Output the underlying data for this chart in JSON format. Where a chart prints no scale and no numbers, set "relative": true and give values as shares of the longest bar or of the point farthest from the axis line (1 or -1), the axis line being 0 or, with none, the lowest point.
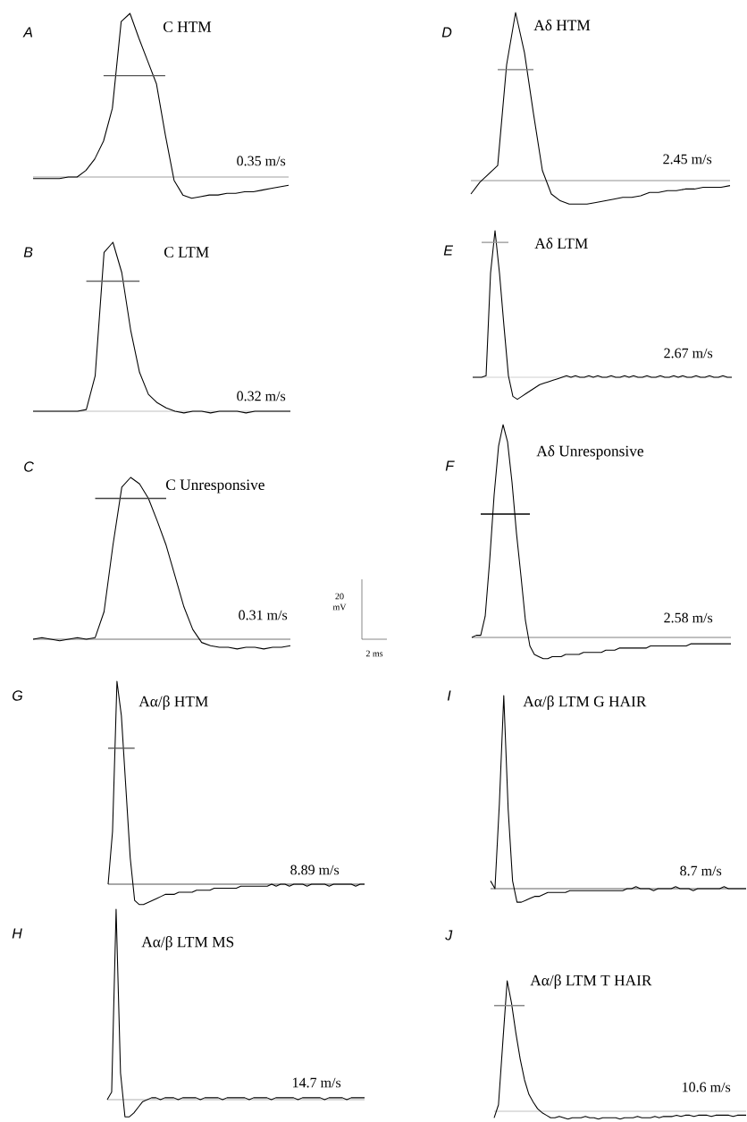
{
  "chart_data": [
    {
      "type": "line",
      "relative": true,
      "title": "C HTM",
      "annotations": [
        "A",
        "0.35 m/s"
      ],
      "categories": [
        null,
        null,
        null,
        null,
        null,
        null,
        null,
        null,
        null,
        null,
        null,
        null,
        null,
        null,
        null,
        null,
        null,
        null,
        null,
        null,
        null,
        null,
        null,
        null,
        null,
        null,
        null,
        null,
        null,
        null
      ],
      "series": [
        {
          "color": "#000000",
          "values": [
            -0.01,
            -0.01,
            -0.01,
            -0.01,
            0,
            0,
            0.04,
            0.11,
            0.22,
            0.42,
            0.95,
            1,
            0.85,
            0.71,
            0.57,
            0.26,
            -0.02,
            -0.11,
            -0.13,
            -0.12,
            -0.11,
            -0.11,
            -0.1,
            -0.1,
            -0.09,
            -0.09,
            -0.08,
            -0.07,
            -0.06,
            -0.05
          ]
        },
        {
          "color": "#555555",
          "values": [
            null,
            null,
            null,
            null,
            null,
            null,
            null,
            null,
            0.62,
            0.62,
            0.62,
            0.62,
            0.62,
            0.62,
            0.62,
            0.62,
            null,
            null,
            null,
            null,
            null,
            null,
            null,
            null,
            null,
            null,
            null,
            null,
            null,
            null
          ]
        }
      ],
      "ref_lines": [
        {
          "axis": "y",
          "value": 0,
          "color": "#999999"
        }
      ]
    },
    {
      "type": "line",
      "relative": true,
      "title": "Aδ HTM",
      "annotations": [
        "D",
        "2.45 m/s"
      ],
      "categories": [
        null,
        null,
        null,
        null,
        null,
        null,
        null,
        null,
        null,
        null,
        null,
        null,
        null,
        null,
        null,
        null,
        null,
        null,
        null,
        null,
        null,
        null,
        null,
        null,
        null,
        null,
        null,
        null,
        null,
        null
      ],
      "series": [
        {
          "color": "#000000",
          "values": [
            -0.08,
            -0.01,
            0.04,
            0.09,
            0.69,
            1,
            0.76,
            0.4,
            0.06,
            -0.08,
            -0.12,
            -0.14,
            -0.14,
            -0.14,
            -0.13,
            -0.12,
            -0.11,
            -0.1,
            -0.1,
            -0.09,
            -0.07,
            -0.07,
            -0.06,
            -0.06,
            -0.05,
            -0.05,
            -0.04,
            -0.04,
            -0.04,
            -0.03
          ]
        },
        {
          "color": "#777777",
          "values": [
            null,
            null,
            null,
            0.66,
            0.66,
            0.66,
            0.66,
            0.66,
            null,
            null,
            null,
            null,
            null,
            null,
            null,
            null,
            null,
            null,
            null,
            null,
            null,
            null,
            null,
            null,
            null,
            null,
            null,
            null,
            null,
            null
          ]
        }
      ],
      "ref_lines": [
        {
          "axis": "y",
          "value": 0,
          "color": "#888888"
        }
      ]
    },
    {
      "type": "line",
      "relative": true,
      "title": "C LTM",
      "annotations": [
        "B",
        "0.32 m/s"
      ],
      "categories": [
        null,
        null,
        null,
        null,
        null,
        null,
        null,
        null,
        null,
        null,
        null,
        null,
        null,
        null,
        null,
        null,
        null,
        null,
        null,
        null,
        null,
        null,
        null,
        null,
        null,
        null,
        null,
        null,
        null,
        null
      ],
      "series": [
        {
          "color": "#000000",
          "values": [
            0,
            0,
            0,
            0,
            0,
            0,
            0.01,
            0.21,
            0.94,
            1,
            0.82,
            0.48,
            0.23,
            0.1,
            0.05,
            0.02,
            0,
            -0.01,
            0,
            0,
            -0.01,
            0,
            0,
            0,
            -0.01,
            0,
            0,
            0,
            0,
            0
          ]
        },
        {
          "color": "#666666",
          "values": [
            null,
            null,
            null,
            null,
            null,
            null,
            0.77,
            0.77,
            0.77,
            0.77,
            0.77,
            0.77,
            0.77,
            null,
            null,
            null,
            null,
            null,
            null,
            null,
            null,
            null,
            null,
            null,
            null,
            null,
            null,
            null,
            null,
            null
          ]
        }
      ],
      "ref_lines": [
        {
          "axis": "y",
          "value": 0,
          "color": "#bbbbbb"
        }
      ]
    },
    {
      "type": "line",
      "relative": true,
      "title": "Aδ LTM",
      "annotations": [
        "E",
        "2.67 m/s"
      ],
      "ref_lines": [
        {
          "axis": "y",
          "value": 0,
          "color": "#cccccc"
        }
      ],
      "categories": [
        null,
        null,
        null,
        null,
        null,
        null,
        null,
        null,
        null,
        null,
        null,
        null,
        null,
        null,
        null,
        null,
        null,
        null,
        null,
        null,
        null,
        null,
        null,
        null,
        null,
        null,
        null,
        null,
        null,
        null,
        null,
        null,
        null,
        null,
        null,
        null,
        null,
        null,
        null,
        null,
        null,
        null,
        null,
        null,
        null,
        null,
        null,
        null,
        null,
        null,
        null,
        null,
        null,
        null,
        null,
        null,
        null,
        null,
        null
      ],
      "series": [
        {
          "color": "#000000",
          "values": [
            0,
            0,
            0,
            0.01,
            0.71,
            1,
            0.71,
            0.35,
            0.01,
            -0.13,
            -0.15,
            -0.13,
            -0.11,
            -0.09,
            -0.07,
            -0.05,
            -0.04,
            -0.03,
            -0.02,
            -0.01,
            0,
            0.01,
            0,
            0.01,
            0,
            0,
            0.01,
            0,
            0.01,
            0,
            0,
            0.01,
            0,
            0,
            0.01,
            0,
            0.01,
            0,
            0,
            0.01,
            0,
            0,
            0.01,
            0,
            0,
            0.01,
            0,
            0.01,
            0,
            0,
            0.01,
            0,
            0,
            0.01,
            0,
            0,
            0.01,
            0,
            0
          ]
        },
        {
          "color": "#999999",
          "values": [
            null,
            null,
            0.92,
            0.92,
            0.92,
            0.92,
            0.92,
            0.92,
            0.92,
            null,
            null,
            null,
            null,
            null,
            null,
            null,
            null,
            null,
            null,
            null,
            null,
            null,
            null,
            null,
            null,
            null,
            null,
            null,
            null,
            null,
            null,
            null,
            null,
            null,
            null,
            null,
            null,
            null,
            null,
            null,
            null,
            null,
            null,
            null,
            null,
            null,
            null,
            null,
            null,
            null,
            null,
            null,
            null,
            null,
            null,
            null,
            null,
            null,
            null
          ]
        }
      ]
    },
    {
      "type": "line",
      "relative": true,
      "title": "C Unresponsive",
      "annotations": [
        "C",
        "0.31 m/s",
        "20 mV",
        "2 ms"
      ],
      "categories": [
        null,
        null,
        null,
        null,
        null,
        null,
        null,
        null,
        null,
        null,
        null,
        null,
        null,
        null,
        null,
        null,
        null,
        null,
        null,
        null,
        null,
        null,
        null,
        null,
        null,
        null,
        null,
        null,
        null,
        null
      ],
      "series": [
        {
          "color": "#000000",
          "values": [
            0,
            0.01,
            0,
            -0.01,
            0,
            0.01,
            0,
            0.01,
            0.17,
            0.58,
            0.94,
            1,
            0.96,
            0.87,
            0.73,
            0.58,
            0.39,
            0.2,
            0.06,
            -0.02,
            -0.04,
            -0.05,
            -0.05,
            -0.06,
            -0.05,
            -0.05,
            -0.06,
            -0.05,
            -0.05,
            -0.04
          ]
        },
        {
          "color": "#444444",
          "values": [
            null,
            null,
            null,
            null,
            null,
            null,
            null,
            0.87,
            0.87,
            0.87,
            0.87,
            0.87,
            0.87,
            0.87,
            0.87,
            0.87,
            null,
            null,
            null,
            null,
            null,
            null,
            null,
            null,
            null,
            null,
            null,
            null,
            null,
            null
          ]
        }
      ],
      "ref_lines": [
        {
          "axis": "y",
          "value": 0,
          "color": "#666666"
        }
      ]
    },
    {
      "type": "line",
      "relative": true,
      "title": "Aδ Unresponsive",
      "annotations": [
        "F",
        "2.58 m/s"
      ],
      "categories": [
        null,
        null,
        null,
        null,
        null,
        null,
        null,
        null,
        null,
        null,
        null,
        null,
        null,
        null,
        null,
        null,
        null,
        null,
        null,
        null,
        null,
        null,
        null,
        null,
        null,
        null,
        null,
        null,
        null,
        null,
        null,
        null,
        null,
        null,
        null,
        null,
        null,
        null,
        null,
        null,
        null,
        null,
        null,
        null,
        null,
        null,
        null,
        null,
        null,
        null,
        null,
        null,
        null,
        null,
        null,
        null,
        null,
        null,
        null
      ],
      "series": [
        {
          "color": "#000000",
          "values": [
            0,
            0.01,
            0.01,
            0.1,
            0.36,
            0.67,
            0.9,
            1,
            0.92,
            0.73,
            0.49,
            0.29,
            0.08,
            -0.04,
            -0.08,
            -0.09,
            -0.1,
            -0.1,
            -0.09,
            -0.09,
            -0.09,
            -0.08,
            -0.08,
            -0.08,
            -0.08,
            -0.07,
            -0.07,
            -0.07,
            -0.07,
            -0.07,
            -0.06,
            -0.06,
            -0.06,
            -0.05,
            -0.05,
            -0.05,
            -0.05,
            -0.05,
            -0.05,
            -0.05,
            -0.04,
            -0.04,
            -0.04,
            -0.04,
            -0.04,
            -0.04,
            -0.04,
            -0.04,
            -0.04,
            -0.03,
            -0.03,
            -0.03,
            -0.03,
            -0.03,
            -0.03,
            -0.03,
            -0.03,
            -0.03,
            -0.03
          ]
        },
        {
          "color": "#000000",
          "values": [
            null,
            null,
            0.58,
            0.58,
            0.58,
            0.58,
            0.58,
            0.58,
            0.58,
            0.58,
            0.58,
            0.58,
            0.58,
            0.58,
            null,
            null,
            null,
            null,
            null,
            null,
            null,
            null,
            null,
            null,
            null,
            null,
            null,
            null,
            null,
            null,
            null,
            null,
            null,
            null,
            null,
            null,
            null,
            null,
            null,
            null,
            null,
            null,
            null,
            null,
            null,
            null,
            null,
            null,
            null,
            null,
            null,
            null,
            null,
            null,
            null,
            null,
            null,
            null,
            null
          ]
        }
      ],
      "ref_lines": [
        {
          "axis": "y",
          "value": 0,
          "color": "#777777"
        }
      ]
    },
    {
      "type": "line",
      "relative": true,
      "title": "Aα/β HTM",
      "annotations": [
        "G",
        "8.89 m/s"
      ],
      "categories": [
        null,
        null,
        null,
        null,
        null,
        null,
        null,
        null,
        null,
        null,
        null,
        null,
        null,
        null,
        null,
        null,
        null,
        null,
        null,
        null,
        null,
        null,
        null,
        null,
        null,
        null,
        null,
        null,
        null,
        null,
        null,
        null,
        null,
        null,
        null,
        null,
        null,
        null,
        null,
        null,
        null,
        null,
        null,
        null,
        null,
        null,
        null,
        null,
        null,
        null,
        null,
        null,
        null,
        null,
        null,
        null,
        null,
        null,
        null
      ],
      "series": [
        {
          "color": "#000000",
          "values": [
            0,
            0.26,
            1,
            0.83,
            0.48,
            0.13,
            -0.08,
            -0.1,
            -0.1,
            -0.09,
            -0.08,
            -0.07,
            -0.06,
            -0.05,
            -0.05,
            -0.05,
            -0.04,
            -0.04,
            -0.04,
            -0.04,
            -0.03,
            -0.03,
            -0.03,
            -0.03,
            -0.02,
            -0.02,
            -0.02,
            -0.02,
            -0.02,
            -0.02,
            -0.01,
            -0.01,
            -0.01,
            -0.01,
            -0.01,
            -0.01,
            -0.01,
            0,
            -0.01,
            0,
            0,
            -0.01,
            0,
            0,
            0,
            -0.01,
            0,
            0,
            0,
            0,
            -0.01,
            0,
            0,
            0,
            0,
            0,
            -0.01,
            0,
            0
          ]
        },
        {
          "color": "#555555",
          "values": [
            0.67,
            0.67,
            0.67,
            0.67,
            0.67,
            0.67,
            0.67,
            null,
            null,
            null,
            null,
            null,
            null,
            null,
            null,
            null,
            null,
            null,
            null,
            null,
            null,
            null,
            null,
            null,
            null,
            null,
            null,
            null,
            null,
            null,
            null,
            null,
            null,
            null,
            null,
            null,
            null,
            null,
            null,
            null,
            null,
            null,
            null,
            null,
            null,
            null,
            null,
            null,
            null,
            null,
            null,
            null,
            null,
            null,
            null,
            null,
            null,
            null,
            null
          ]
        }
      ],
      "ref_lines": [
        {
          "axis": "y",
          "value": 0,
          "color": "#444444"
        }
      ]
    },
    {
      "type": "line",
      "relative": true,
      "title": "Aα/β LTM G HAIR",
      "annotations": [
        "I",
        "8.7 m/s"
      ],
      "categories": [
        null,
        null,
        null,
        null,
        null,
        null,
        null,
        null,
        null,
        null,
        null,
        null,
        null,
        null,
        null,
        null,
        null,
        null,
        null,
        null,
        null,
        null,
        null,
        null,
        null,
        null,
        null,
        null,
        null,
        null,
        null,
        null,
        null,
        null,
        null,
        null,
        null,
        null,
        null,
        null,
        null,
        null,
        null,
        null,
        null,
        null,
        null,
        null,
        null,
        null,
        null,
        null,
        null,
        null,
        null,
        null,
        null,
        null,
        null
      ],
      "series": [
        {
          "color": "#000000",
          "values": [
            0.04,
            0,
            0.44,
            1,
            0.41,
            0.04,
            -0.07,
            -0.07,
            -0.06,
            -0.05,
            -0.04,
            -0.04,
            -0.03,
            -0.02,
            -0.02,
            -0.02,
            -0.02,
            -0.02,
            -0.01,
            -0.01,
            -0.01,
            -0.01,
            -0.01,
            -0.01,
            -0.01,
            -0.01,
            -0.01,
            -0.01,
            -0.01,
            -0.01,
            -0.01,
            0,
            0,
            0.01,
            0,
            0,
            0,
            -0.01,
            0,
            0,
            0,
            0,
            0.01,
            0,
            0,
            0,
            -0.01,
            0,
            0,
            0,
            0,
            0,
            0,
            0.01,
            0,
            0,
            0,
            0,
            0
          ]
        }
      ],
      "ref_lines": [
        {
          "axis": "y",
          "value": 0,
          "color": "#555555"
        }
      ]
    },
    {
      "type": "line",
      "relative": true,
      "title": "Aα/β LTM MS",
      "annotations": [
        "H",
        "14.7 m/s"
      ],
      "categories": [
        null,
        null,
        null,
        null,
        null,
        null,
        null,
        null,
        null,
        null,
        null,
        null,
        null,
        null,
        null,
        null,
        null,
        null,
        null,
        null,
        null,
        null,
        null,
        null,
        null,
        null,
        null,
        null,
        null,
        null,
        null,
        null,
        null,
        null,
        null,
        null,
        null,
        null,
        null,
        null,
        null,
        null,
        null,
        null,
        null,
        null,
        null,
        null,
        null,
        null,
        null,
        null,
        null,
        null,
        null,
        null,
        null,
        null,
        null
      ],
      "series": [
        {
          "color": "#000000",
          "values": [
            0,
            0.04,
            1,
            0.14,
            -0.09,
            -0.09,
            -0.07,
            -0.04,
            -0.01,
            0,
            0.01,
            0.01,
            0,
            0.01,
            0.01,
            0.01,
            0,
            0.01,
            0.01,
            0.01,
            0.01,
            0,
            0.01,
            0.01,
            0.01,
            0.01,
            0,
            0.01,
            0.01,
            0.01,
            0.01,
            0.01,
            0,
            0.01,
            0.01,
            0.01,
            0.01,
            0,
            0.01,
            0.01,
            0.01,
            0.01,
            0.01,
            0,
            0.01,
            0.01,
            0.01,
            0.01,
            0.01,
            0,
            0.01,
            0.01,
            0.01,
            0.01,
            0,
            0.01,
            0.01,
            0.01,
            0.01
          ]
        }
      ],
      "ref_lines": [
        {
          "axis": "y",
          "value": 0,
          "color": "#aaaaaa"
        }
      ]
    },
    {
      "type": "line",
      "relative": true,
      "title": "Aα/β LTM T HAIR",
      "annotations": [
        "J",
        "10.6 m/s"
      ],
      "categories": [
        null,
        null,
        null,
        null,
        null,
        null,
        null,
        null,
        null,
        null,
        null,
        null,
        null,
        null,
        null,
        null,
        null,
        null,
        null,
        null,
        null,
        null,
        null,
        null,
        null,
        null,
        null,
        null,
        null,
        null,
        null,
        null,
        null,
        null,
        null,
        null,
        null,
        null,
        null,
        null,
        null,
        null,
        null,
        null,
        null,
        null,
        null,
        null,
        null,
        null,
        null,
        null,
        null,
        null,
        null,
        null,
        null,
        null,
        null
      ],
      "series": [
        {
          "color": "#000000",
          "values": [
            -0.05,
            0.05,
            0.53,
            1,
            0.83,
            0.6,
            0.4,
            0.24,
            0.13,
            0.07,
            0.02,
            -0.01,
            -0.03,
            -0.05,
            -0.05,
            -0.04,
            -0.05,
            -0.06,
            -0.05,
            -0.05,
            -0.05,
            -0.04,
            -0.05,
            -0.05,
            -0.06,
            -0.05,
            -0.05,
            -0.05,
            -0.05,
            -0.06,
            -0.05,
            -0.05,
            -0.05,
            -0.04,
            -0.05,
            -0.05,
            -0.05,
            -0.04,
            -0.05,
            -0.04,
            -0.04,
            -0.04,
            -0.03,
            -0.04,
            -0.03,
            -0.03,
            -0.04,
            -0.03,
            -0.03,
            -0.03,
            -0.04,
            -0.03,
            -0.03,
            -0.03,
            -0.03,
            -0.04,
            -0.03,
            -0.03,
            -0.03
          ]
        },
        {
          "color": "#888888",
          "values": [
            0.81,
            0.81,
            0.81,
            0.81,
            0.81,
            0.81,
            0.81,
            0.81,
            null,
            null,
            null,
            null,
            null,
            null,
            null,
            null,
            null,
            null,
            null,
            null,
            null,
            null,
            null,
            null,
            null,
            null,
            null,
            null,
            null,
            null,
            null,
            null,
            null,
            null,
            null,
            null,
            null,
            null,
            null,
            null,
            null,
            null,
            null,
            null,
            null,
            null,
            null,
            null,
            null,
            null,
            null,
            null,
            null,
            null,
            null,
            null,
            null,
            null,
            null
          ]
        }
      ],
      "ref_lines": [
        {
          "axis": "y",
          "value": 0,
          "color": "#bbbbbb"
        }
      ]
    }
  ]
}
